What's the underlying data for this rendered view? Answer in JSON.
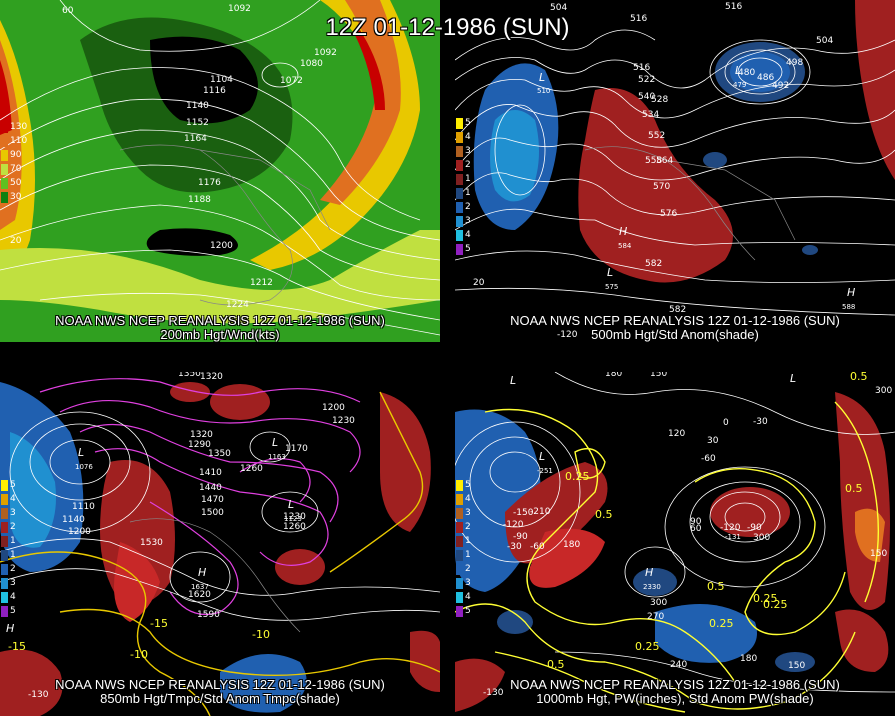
{
  "main_title": "12Z 01-12-1986 (SUN)",
  "panels": {
    "p200": {
      "caption1": "NOAA NWS NCEP REANALYSIS 12Z 01-12-1986 (SUN)",
      "caption2": "200mb Hgt/Wnd(kts)",
      "legend": [
        "130",
        "110",
        "90",
        "70",
        "50",
        "30"
      ],
      "legend_colors": [
        "#c80000",
        "#e07020",
        "#e8c800",
        "#c0e040",
        "#60c020",
        "#108010"
      ],
      "labels": [
        "60",
        "1092",
        "1092",
        "1080",
        "1072",
        "1104",
        "1116",
        "1140",
        "1152",
        "1164",
        "1176",
        "1188",
        "1200",
        "1212",
        "1224",
        "20"
      ]
    },
    "p500": {
      "caption1": "NOAA NWS NCEP REANALYSIS 12Z 01-12-1986 (SUN)",
      "caption2": "500mb Hgt/Std Anom(shade)",
      "legend": [
        "5",
        "4",
        "3",
        "2",
        "1",
        "1",
        "2",
        "3",
        "4",
        "5"
      ],
      "legend_colors": [
        "#ffee00",
        "#e0a000",
        "#b06020",
        "#a02020",
        "#802020",
        "#204880",
        "#2060b0",
        "#2090d0",
        "#20c0e0",
        "#9020c0"
      ],
      "labels": [
        "504",
        "516",
        "516",
        "516",
        "510",
        "522",
        "528",
        "534",
        "540",
        "552",
        "558",
        "564",
        "570",
        "576",
        "582",
        "582",
        "480",
        "486",
        "492",
        "498",
        "504",
        "20",
        "-120"
      ],
      "highs_lows": [
        "L",
        "L",
        "H",
        "L",
        "H"
      ],
      "center_values": [
        "510",
        "479",
        "584",
        "575",
        "588"
      ]
    },
    "p850": {
      "caption1": "NOAA NWS NCEP REANALYSIS 12Z 01-12-1986 (SUN)",
      "caption2": "850mb Hgt/Tmpc/Std Anom Tmpc(shade)",
      "legend": [
        "5",
        "4",
        "3",
        "2",
        "1",
        "1",
        "2",
        "3",
        "4",
        "5"
      ],
      "legend_colors": [
        "#ffee00",
        "#e0a000",
        "#b06020",
        "#a02020",
        "#802020",
        "#204880",
        "#2060b0",
        "#2090d0",
        "#20c0e0",
        "#9020c0"
      ],
      "labels": [
        "1350",
        "1320",
        "1200",
        "1230",
        "1320",
        "1290",
        "1350",
        "1260",
        "1170",
        "1410",
        "1440",
        "1470",
        "1500",
        "1530",
        "1110",
        "1140",
        "1200",
        "1230",
        "1260",
        "1530",
        "1620",
        "1590",
        "-15",
        "-10",
        "-10",
        "-15",
        "-130"
      ],
      "highs_lows": [
        "L",
        "L",
        "L",
        "L",
        "H",
        "H"
      ],
      "center_values": [
        "1076",
        "1163",
        "1123",
        "1637"
      ]
    },
    "p1000": {
      "caption1": "NOAA NWS NCEP REANALYSIS 12Z 01-12-1986 (SUN)",
      "caption2": "1000mb Hgt, PW(inches), Std Anom PW(shade)",
      "legend": [
        "5",
        "4",
        "3",
        "2",
        "1",
        "1",
        "2",
        "3",
        "4",
        "5"
      ],
      "legend_colors": [
        "#ffee00",
        "#e0a000",
        "#b06020",
        "#a02020",
        "#802020",
        "#204880",
        "#2060b0",
        "#2090d0",
        "#20c0e0",
        "#9020c0"
      ],
      "labels": [
        "180",
        "150",
        "120",
        "30",
        "0",
        "-30",
        "-60",
        "0.5",
        "300",
        "0.25",
        "0.5",
        "-120",
        "-150",
        "-210",
        "-90",
        "-30",
        "-60",
        "180",
        "60",
        "90",
        "-120",
        "-90",
        "300",
        "0.25",
        "0.5",
        "300",
        "270",
        "0.25",
        "0.25",
        "240",
        "180",
        "150",
        "150",
        "0.5",
        "0.25",
        "0.5",
        "-130"
      ],
      "highs_lows": [
        "L",
        "L",
        "L",
        "H",
        "L"
      ],
      "center_values": [
        "-251",
        "2330",
        "-131"
      ]
    }
  }
}
